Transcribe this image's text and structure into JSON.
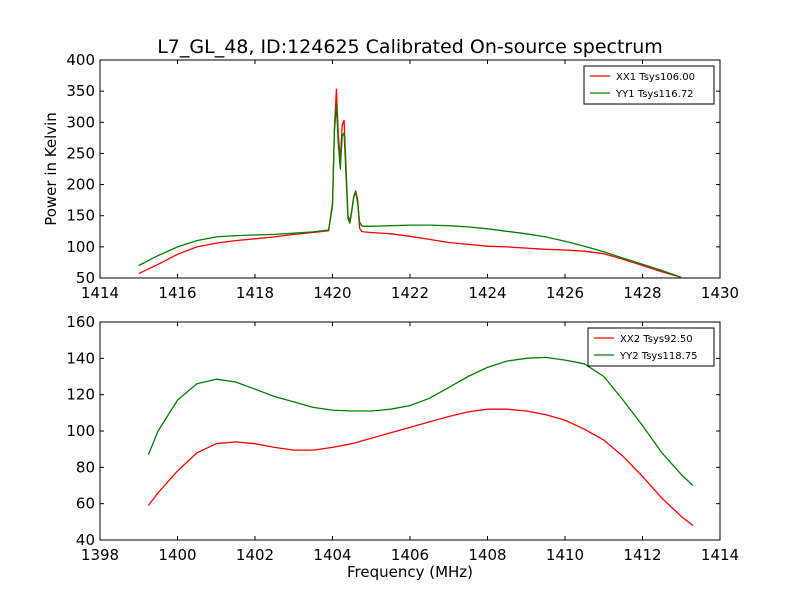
{
  "figure": {
    "title": "L7_GL_48, ID:124625 Calibrated On-source spectrum"
  },
  "chart_data": [
    {
      "type": "line",
      "title": "L7_GL_48, ID:124625 Calibrated On-source spectrum",
      "xlabel": "",
      "ylabel": "Power in Kelvin",
      "xlim": [
        1414,
        1430
      ],
      "ylim": [
        50,
        400
      ],
      "xticks": [
        1414,
        1416,
        1418,
        1420,
        1422,
        1424,
        1426,
        1428,
        1430
      ],
      "yticks": [
        50,
        100,
        150,
        200,
        250,
        300,
        350,
        400
      ],
      "grid": false,
      "legend_position": "top-right",
      "series": [
        {
          "name": "XX1 Tsys106.00",
          "color": "#ff0000",
          "x": [
            1415.0,
            1415.5,
            1416.0,
            1416.5,
            1417.0,
            1417.5,
            1418.0,
            1418.5,
            1419.0,
            1419.5,
            1419.9,
            1420.0,
            1420.05,
            1420.1,
            1420.15,
            1420.2,
            1420.25,
            1420.3,
            1420.4,
            1420.45,
            1420.5,
            1420.55,
            1420.6,
            1420.65,
            1420.7,
            1420.75,
            1420.8,
            1421.0,
            1421.5,
            1422.0,
            1422.5,
            1423.0,
            1423.5,
            1424.0,
            1424.5,
            1425.0,
            1425.5,
            1426.0,
            1426.5,
            1427.0,
            1427.5,
            1428.0,
            1428.5,
            1429.0
          ],
          "y": [
            57,
            72,
            88,
            100,
            106,
            110,
            113,
            116,
            120,
            123,
            126,
            170,
            290,
            353,
            280,
            240,
            295,
            303,
            150,
            142,
            160,
            182,
            190,
            175,
            130,
            125,
            124,
            123,
            121,
            117,
            112,
            107,
            104,
            101,
            100,
            98,
            96,
            95,
            93,
            89,
            80,
            70,
            60,
            51
          ]
        },
        {
          "name": "YY1 Tsys116.72",
          "color": "#008000",
          "x": [
            1415.0,
            1415.5,
            1416.0,
            1416.5,
            1417.0,
            1417.5,
            1418.0,
            1418.5,
            1419.0,
            1419.5,
            1419.9,
            1420.0,
            1420.05,
            1420.1,
            1420.15,
            1420.2,
            1420.25,
            1420.3,
            1420.4,
            1420.45,
            1420.5,
            1420.55,
            1420.6,
            1420.65,
            1420.7,
            1420.75,
            1420.8,
            1421.0,
            1421.5,
            1422.0,
            1422.5,
            1423.0,
            1423.5,
            1424.0,
            1424.5,
            1425.0,
            1425.5,
            1426.0,
            1426.5,
            1427.0,
            1427.5,
            1428.0,
            1428.5,
            1429.0
          ],
          "y": [
            70,
            86,
            100,
            110,
            116,
            118,
            119,
            120,
            122,
            124,
            127,
            165,
            285,
            328,
            265,
            225,
            278,
            283,
            145,
            138,
            158,
            180,
            188,
            170,
            140,
            134,
            133,
            133,
            134,
            135,
            135,
            134,
            132,
            129,
            125,
            121,
            116,
            109,
            101,
            92,
            82,
            72,
            62,
            51
          ]
        }
      ]
    },
    {
      "type": "line",
      "title": "",
      "xlabel": "Frequency (MHz)",
      "ylabel": "",
      "xlim": [
        1398,
        1414
      ],
      "ylim": [
        40,
        160
      ],
      "xticks": [
        1398,
        1400,
        1402,
        1404,
        1406,
        1408,
        1410,
        1412,
        1414
      ],
      "yticks": [
        40,
        60,
        80,
        100,
        120,
        140,
        160
      ],
      "grid": false,
      "legend_position": "top-right",
      "series": [
        {
          "name": "XX2 Tsys92.50",
          "color": "#ff0000",
          "x": [
            1399.25,
            1399.5,
            1400.0,
            1400.5,
            1401.0,
            1401.5,
            1402.0,
            1402.5,
            1403.0,
            1403.5,
            1404.0,
            1404.5,
            1405.0,
            1405.5,
            1406.0,
            1406.5,
            1407.0,
            1407.5,
            1408.0,
            1408.5,
            1409.0,
            1409.5,
            1410.0,
            1410.5,
            1411.0,
            1411.5,
            1412.0,
            1412.5,
            1413.0,
            1413.3
          ],
          "y": [
            59,
            66,
            78,
            88,
            93,
            94,
            93,
            91,
            89.5,
            89.5,
            91,
            93,
            96,
            99,
            102,
            105,
            108,
            110.5,
            112,
            112,
            111,
            109,
            106,
            101,
            95,
            86,
            75,
            63,
            53,
            48
          ]
        },
        {
          "name": "YY2 Tsys118.75",
          "color": "#008000",
          "x": [
            1399.25,
            1399.5,
            1400.0,
            1400.5,
            1401.0,
            1401.5,
            1402.0,
            1402.5,
            1403.0,
            1403.5,
            1404.0,
            1404.5,
            1405.0,
            1405.5,
            1406.0,
            1406.5,
            1407.0,
            1407.5,
            1408.0,
            1408.5,
            1409.0,
            1409.5,
            1410.0,
            1410.5,
            1411.0,
            1411.5,
            1412.0,
            1412.5,
            1413.0,
            1413.3
          ],
          "y": [
            87,
            100,
            117,
            126,
            128.5,
            127,
            123,
            119,
            116,
            113,
            111.5,
            111,
            111,
            112,
            114,
            118,
            124,
            130,
            135,
            138.5,
            140,
            140.5,
            139,
            137,
            130,
            117,
            103,
            88,
            76,
            70
          ]
        }
      ]
    }
  ]
}
